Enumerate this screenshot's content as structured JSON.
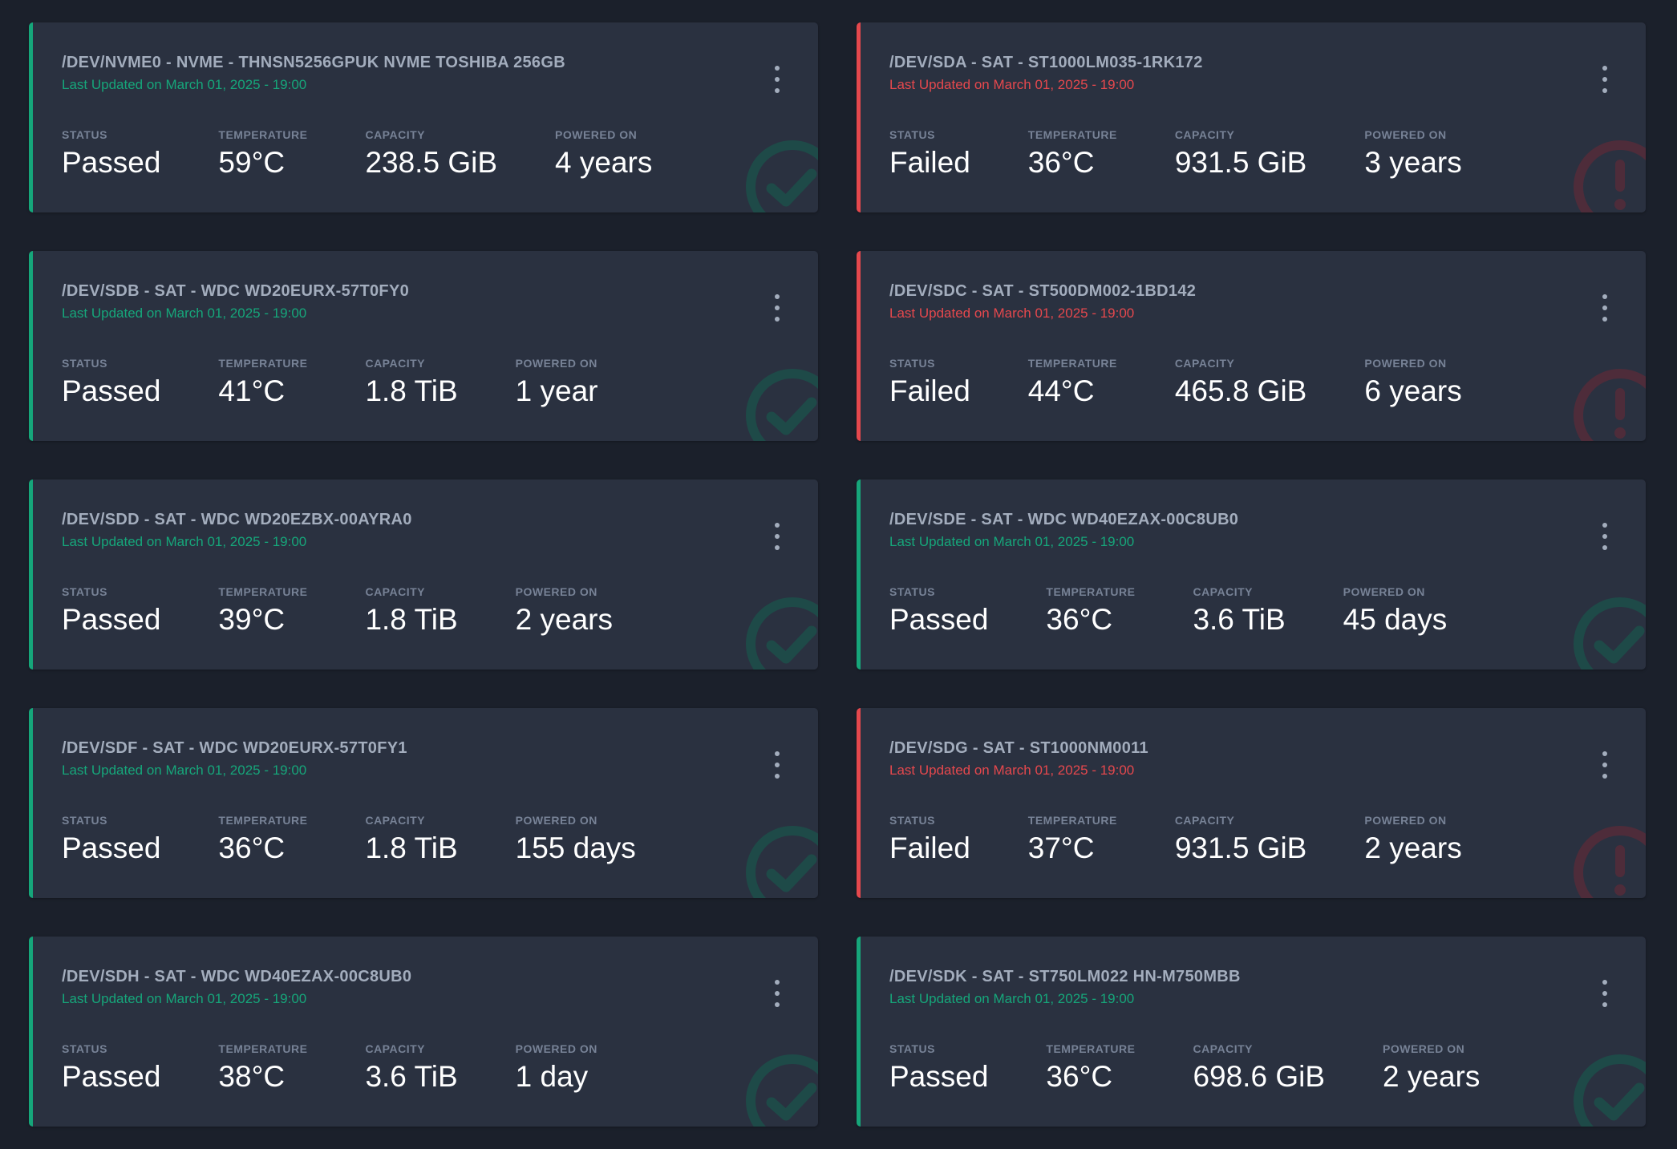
{
  "labels": {
    "status": "STATUS",
    "temperature": "TEMPERATURE",
    "capacity": "CAPACITY",
    "powered_on": "POWERED ON"
  },
  "colors": {
    "passed": "#16a67a",
    "failed": "#e5484d",
    "passed_icon": "#1e4a48",
    "failed_icon": "#4e2c3a"
  },
  "devices": [
    {
      "title": "/DEV/NVME0 - NVME - THNSN5256GPUK NVME TOSHIBA 256GB",
      "updated": "Last Updated on March 01, 2025 - 19:00",
      "status": "Passed",
      "temperature": "59°C",
      "capacity": "238.5 GiB",
      "powered_on": "4 years",
      "icon": "check-circle-icon"
    },
    {
      "title": "/DEV/SDA - SAT - ST1000LM035-1RK172",
      "updated": "Last Updated on March 01, 2025 - 19:00",
      "status": "Failed",
      "temperature": "36°C",
      "capacity": "931.5 GiB",
      "powered_on": "3 years",
      "icon": "alert-circle-icon"
    },
    {
      "title": "/DEV/SDB - SAT - WDC WD20EURX-57T0FY0",
      "updated": "Last Updated on March 01, 2025 - 19:00",
      "status": "Passed",
      "temperature": "41°C",
      "capacity": "1.8 TiB",
      "powered_on": "1 year",
      "icon": "check-circle-icon"
    },
    {
      "title": "/DEV/SDC - SAT - ST500DM002-1BD142",
      "updated": "Last Updated on March 01, 2025 - 19:00",
      "status": "Failed",
      "temperature": "44°C",
      "capacity": "465.8 GiB",
      "powered_on": "6 years",
      "icon": "alert-circle-icon"
    },
    {
      "title": "/DEV/SDD - SAT - WDC WD20EZBX-00AYRA0",
      "updated": "Last Updated on March 01, 2025 - 19:00",
      "status": "Passed",
      "temperature": "39°C",
      "capacity": "1.8 TiB",
      "powered_on": "2 years",
      "icon": "check-circle-icon"
    },
    {
      "title": "/DEV/SDE - SAT - WDC WD40EZAX-00C8UB0",
      "updated": "Last Updated on March 01, 2025 - 19:00",
      "status": "Passed",
      "temperature": "36°C",
      "capacity": "3.6 TiB",
      "powered_on": "45 days",
      "icon": "check-circle-icon"
    },
    {
      "title": "/DEV/SDF - SAT - WDC WD20EURX-57T0FY1",
      "updated": "Last Updated on March 01, 2025 - 19:00",
      "status": "Passed",
      "temperature": "36°C",
      "capacity": "1.8 TiB",
      "powered_on": "155 days",
      "icon": "check-circle-icon"
    },
    {
      "title": "/DEV/SDG - SAT - ST1000NM0011",
      "updated": "Last Updated on March 01, 2025 - 19:00",
      "status": "Failed",
      "temperature": "37°C",
      "capacity": "931.5 GiB",
      "powered_on": "2 years",
      "icon": "alert-circle-icon"
    },
    {
      "title": "/DEV/SDH - SAT - WDC WD40EZAX-00C8UB0",
      "updated": "Last Updated on March 01, 2025 - 19:00",
      "status": "Passed",
      "temperature": "38°C",
      "capacity": "3.6 TiB",
      "powered_on": "1 day",
      "icon": "check-circle-icon"
    },
    {
      "title": "/DEV/SDK - SAT - ST750LM022 HN-M750MBB",
      "updated": "Last Updated on March 01, 2025 - 19:00",
      "status": "Passed",
      "temperature": "36°C",
      "capacity": "698.6 GiB",
      "powered_on": "2 years",
      "icon": "check-circle-icon"
    }
  ]
}
